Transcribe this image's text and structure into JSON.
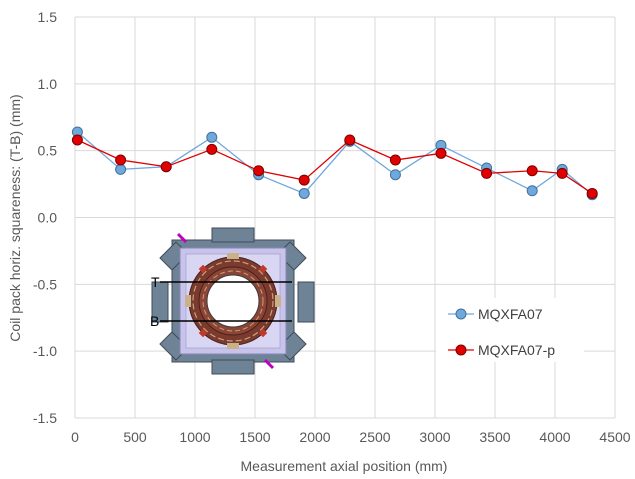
{
  "chart_data": {
    "type": "line",
    "xlabel": "Measurement axial position (mm)",
    "ylabel": "Coil pack horiz. squareness: (T-B) (mm)",
    "xlim": [
      0,
      4500
    ],
    "ylim": [
      -1.5,
      1.5
    ],
    "x_ticks": [
      0,
      500,
      1000,
      1500,
      2000,
      2500,
      3000,
      3500,
      4000,
      4500
    ],
    "y_ticks": [
      -1.5,
      -1.0,
      -0.5,
      0.0,
      0.5,
      1.0,
      1.5
    ],
    "y_tick_labels": [
      "-1.5",
      "-1.0",
      "-0.5",
      "0.0",
      "0.5",
      "1.0",
      "1.5"
    ],
    "grid": "vertical-and-horizontal",
    "legend_position": "right",
    "series": [
      {
        "name": "MQXFA07",
        "color": "#6fa8dc",
        "x": [
          20,
          380,
          760,
          1140,
          1530,
          1910,
          2290,
          2670,
          3050,
          3430,
          3810,
          4060,
          4310
        ],
        "y": [
          0.64,
          0.36,
          0.38,
          0.6,
          0.32,
          0.18,
          0.57,
          0.32,
          0.54,
          0.37,
          0.2,
          0.36,
          0.17
        ]
      },
      {
        "name": "MQXFA07-p",
        "color": "#e00000",
        "x": [
          20,
          380,
          760,
          1140,
          1530,
          1910,
          2290,
          2670,
          3050,
          3430,
          3810,
          4060,
          4310
        ],
        "y": [
          0.58,
          0.43,
          0.38,
          0.51,
          0.35,
          0.28,
          0.58,
          0.43,
          0.48,
          0.33,
          0.35,
          0.33,
          0.18
        ]
      }
    ],
    "inset_labels": [
      "T",
      "B"
    ]
  }
}
